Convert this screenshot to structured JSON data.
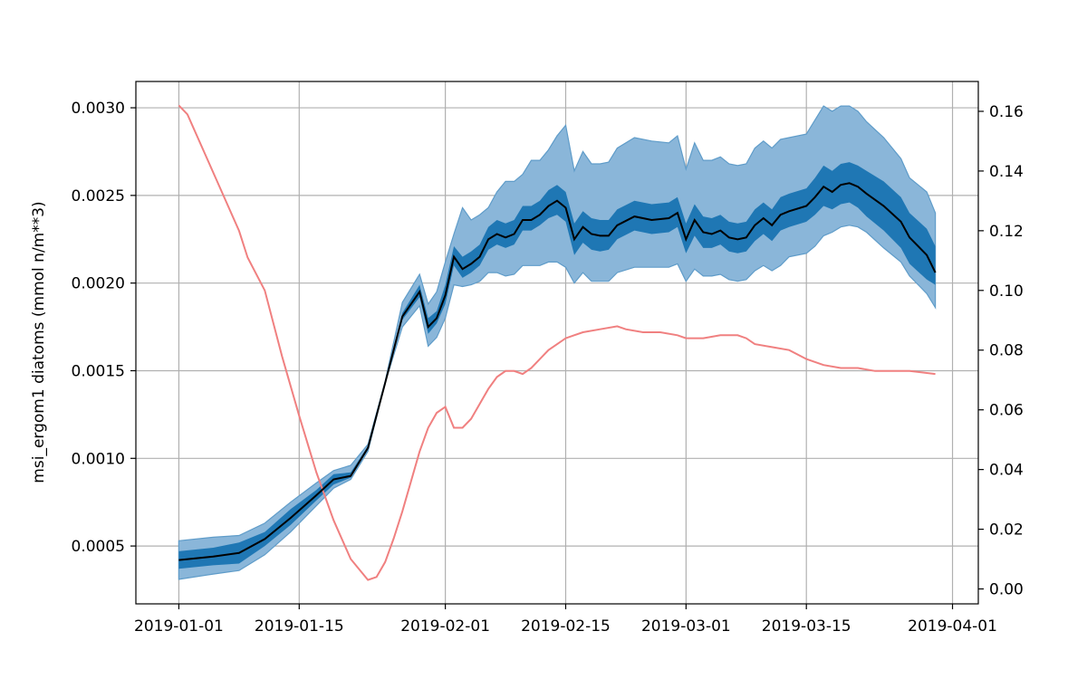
{
  "chart_data": {
    "type": "line",
    "title": "",
    "xlabel": "",
    "ylabel": "msi_ergom1 diatoms (mmol n/m**3)",
    "y2label": "",
    "grid": true,
    "x_ticks": [
      "2019-01-01",
      "2019-01-15",
      "2019-02-01",
      "2019-02-15",
      "2019-03-01",
      "2019-03-15",
      "2019-04-01"
    ],
    "y_ticks": [
      "0.0005",
      "0.0010",
      "0.0015",
      "0.0020",
      "0.0025",
      "0.0030"
    ],
    "y2_ticks": [
      "0.00",
      "0.02",
      "0.04",
      "0.06",
      "0.08",
      "0.10",
      "0.12",
      "0.14",
      "0.16"
    ],
    "xlim": [
      "2018-12-27",
      "2019-04-04"
    ],
    "ylim": [
      0.00017,
      0.00315
    ],
    "y2lim": [
      -0.005,
      0.17
    ],
    "colors": {
      "outer_band": "#8ab6d9",
      "outer_band_edge": "#5f9cc9",
      "inner_band": "#1f77b4",
      "median_line": "#000000",
      "secondary_line": "#f08080"
    },
    "series": [
      {
        "axis": "left",
        "x": [
          "2019-01-01",
          "2019-01-05",
          "2019-01-08",
          "2019-01-11",
          "2019-01-14",
          "2019-01-17",
          "2019-01-19",
          "2019-01-21",
          "2019-01-23",
          "2019-01-25",
          "2019-01-27",
          "2019-01-29",
          "2019-01-30",
          "2019-01-31",
          "2019-02-01",
          "2019-02-02",
          "2019-02-03",
          "2019-02-04",
          "2019-02-05",
          "2019-02-06",
          "2019-02-07",
          "2019-02-08",
          "2019-02-09",
          "2019-02-10",
          "2019-02-11",
          "2019-02-12",
          "2019-02-13",
          "2019-02-14",
          "2019-02-15",
          "2019-02-16",
          "2019-02-17",
          "2019-02-18",
          "2019-02-19",
          "2019-02-20",
          "2019-02-21",
          "2019-02-23",
          "2019-02-25",
          "2019-02-27",
          "2019-02-28",
          "2019-03-01",
          "2019-03-02",
          "2019-03-03",
          "2019-03-04",
          "2019-03-05",
          "2019-03-06",
          "2019-03-07",
          "2019-03-08",
          "2019-03-09",
          "2019-03-10",
          "2019-03-11",
          "2019-03-12",
          "2019-03-13",
          "2019-03-15",
          "2019-03-16",
          "2019-03-17",
          "2019-03-18",
          "2019-03-19",
          "2019-03-20",
          "2019-03-21",
          "2019-03-22",
          "2019-03-24",
          "2019-03-26",
          "2019-03-27",
          "2019-03-29",
          "2019-03-30"
        ],
        "values": [
          0.00042,
          0.00044,
          0.00046,
          0.00054,
          0.00066,
          0.00079,
          0.00088,
          0.0009,
          0.00106,
          0.00143,
          0.00181,
          0.00195,
          0.00175,
          0.0018,
          0.00193,
          0.00215,
          0.00208,
          0.00211,
          0.00215,
          0.00225,
          0.00228,
          0.00226,
          0.00228,
          0.00236,
          0.00236,
          0.00239,
          0.00244,
          0.00247,
          0.00243,
          0.00225,
          0.00232,
          0.00228,
          0.00227,
          0.00227,
          0.00233,
          0.00238,
          0.00236,
          0.00237,
          0.0024,
          0.00225,
          0.00236,
          0.00229,
          0.00228,
          0.0023,
          0.00226,
          0.00225,
          0.00226,
          0.00233,
          0.00237,
          0.00233,
          0.00239,
          0.00241,
          0.00244,
          0.00249,
          0.00255,
          0.00252,
          0.00256,
          0.00257,
          0.00255,
          0.00251,
          0.00244,
          0.00235,
          0.00226,
          0.00216,
          0.00206
        ],
        "inner_band": {
          "lower": [
            0.00037,
            0.00039,
            0.0004,
            0.0005,
            0.00062,
            0.00076,
            0.00085,
            0.00089,
            0.00105,
            0.00143,
            0.00179,
            0.00192,
            0.00171,
            0.00177,
            0.00188,
            0.0021,
            0.00203,
            0.00206,
            0.0021,
            0.00219,
            0.00222,
            0.0022,
            0.00222,
            0.0023,
            0.0023,
            0.00233,
            0.00237,
            0.00239,
            0.00235,
            0.00216,
            0.00223,
            0.00219,
            0.00218,
            0.00219,
            0.00225,
            0.0023,
            0.00228,
            0.00229,
            0.00232,
            0.00217,
            0.00227,
            0.0022,
            0.0022,
            0.00222,
            0.00218,
            0.00217,
            0.00218,
            0.00224,
            0.00228,
            0.00224,
            0.0023,
            0.00232,
            0.00235,
            0.00239,
            0.00244,
            0.00242,
            0.00245,
            0.00246,
            0.00243,
            0.00238,
            0.0023,
            0.0022,
            0.00211,
            0.00202,
            0.00199
          ],
          "upper": [
            0.00047,
            0.00049,
            0.00052,
            0.00058,
            0.00071,
            0.00082,
            0.00091,
            0.00092,
            0.00107,
            0.00144,
            0.00183,
            0.00199,
            0.0018,
            0.00184,
            0.00199,
            0.00221,
            0.00215,
            0.00218,
            0.00222,
            0.00232,
            0.00236,
            0.00234,
            0.00236,
            0.00244,
            0.00244,
            0.00247,
            0.00253,
            0.00256,
            0.00252,
            0.00234,
            0.00241,
            0.00237,
            0.00236,
            0.00236,
            0.00242,
            0.00247,
            0.00245,
            0.00246,
            0.00249,
            0.00234,
            0.00245,
            0.00238,
            0.00237,
            0.00239,
            0.00235,
            0.00234,
            0.00235,
            0.00242,
            0.00246,
            0.00242,
            0.00249,
            0.00251,
            0.00254,
            0.0026,
            0.00267,
            0.00264,
            0.00268,
            0.00269,
            0.00267,
            0.00264,
            0.00258,
            0.00249,
            0.0024,
            0.00231,
            0.00221
          ]
        },
        "outer_band": {
          "lower": [
            0.00031,
            0.00034,
            0.00036,
            0.00045,
            0.00058,
            0.00073,
            0.00083,
            0.00088,
            0.00104,
            0.00143,
            0.00175,
            0.00187,
            0.00164,
            0.00169,
            0.0018,
            0.00199,
            0.00198,
            0.00199,
            0.00201,
            0.00206,
            0.00206,
            0.00204,
            0.00205,
            0.0021,
            0.0021,
            0.0021,
            0.00212,
            0.00212,
            0.00209,
            0.002,
            0.00206,
            0.00201,
            0.00201,
            0.00201,
            0.00206,
            0.00209,
            0.00209,
            0.00209,
            0.00211,
            0.00201,
            0.00208,
            0.00204,
            0.00204,
            0.00205,
            0.00202,
            0.00201,
            0.00202,
            0.00207,
            0.0021,
            0.00207,
            0.0021,
            0.00215,
            0.00217,
            0.00221,
            0.00227,
            0.00229,
            0.00232,
            0.00233,
            0.00232,
            0.00229,
            0.0022,
            0.00212,
            0.00204,
            0.00194,
            0.00186
          ],
          "upper": [
            0.00053,
            0.00055,
            0.00056,
            0.00063,
            0.00075,
            0.00086,
            0.00093,
            0.00096,
            0.00108,
            0.00144,
            0.00189,
            0.00205,
            0.00188,
            0.00195,
            0.00212,
            0.00228,
            0.00243,
            0.00236,
            0.00239,
            0.00243,
            0.00252,
            0.00258,
            0.00258,
            0.00262,
            0.0027,
            0.0027,
            0.00276,
            0.00284,
            0.0029,
            0.00264,
            0.00275,
            0.00268,
            0.00268,
            0.00269,
            0.00277,
            0.00283,
            0.00281,
            0.0028,
            0.00284,
            0.00265,
            0.0028,
            0.0027,
            0.0027,
            0.00272,
            0.00268,
            0.00267,
            0.00268,
            0.00277,
            0.00281,
            0.00277,
            0.00282,
            0.00283,
            0.00285,
            0.00293,
            0.00301,
            0.00298,
            0.00301,
            0.00301,
            0.00298,
            0.00292,
            0.00283,
            0.00271,
            0.0026,
            0.00252,
            0.0024
          ]
        }
      },
      {
        "axis": "right",
        "x": [
          "2019-01-01",
          "2019-01-02",
          "2019-01-04",
          "2019-01-06",
          "2019-01-08",
          "2019-01-09",
          "2019-01-11",
          "2019-01-13",
          "2019-01-15",
          "2019-01-17",
          "2019-01-19",
          "2019-01-21",
          "2019-01-23",
          "2019-01-24",
          "2019-01-25",
          "2019-01-26",
          "2019-01-27",
          "2019-01-28",
          "2019-01-29",
          "2019-01-30",
          "2019-01-31",
          "2019-02-01",
          "2019-02-02",
          "2019-02-03",
          "2019-02-04",
          "2019-02-05",
          "2019-02-06",
          "2019-02-07",
          "2019-02-08",
          "2019-02-09",
          "2019-02-10",
          "2019-02-11",
          "2019-02-12",
          "2019-02-13",
          "2019-02-15",
          "2019-02-17",
          "2019-02-19",
          "2019-02-21",
          "2019-02-22",
          "2019-02-24",
          "2019-02-26",
          "2019-02-28",
          "2019-03-01",
          "2019-03-03",
          "2019-03-05",
          "2019-03-07",
          "2019-03-08",
          "2019-03-09",
          "2019-03-11",
          "2019-03-13",
          "2019-03-15",
          "2019-03-17",
          "2019-03-19",
          "2019-03-21",
          "2019-03-23",
          "2019-03-25",
          "2019-03-27",
          "2019-03-30"
        ],
        "values": [
          0.162,
          0.159,
          0.146,
          0.133,
          0.12,
          0.111,
          0.1,
          0.078,
          0.058,
          0.039,
          0.023,
          0.01,
          0.003,
          0.004,
          0.009,
          0.017,
          0.026,
          0.036,
          0.046,
          0.054,
          0.059,
          0.061,
          0.054,
          0.054,
          0.057,
          0.062,
          0.067,
          0.071,
          0.073,
          0.073,
          0.072,
          0.074,
          0.077,
          0.08,
          0.084,
          0.086,
          0.087,
          0.088,
          0.087,
          0.086,
          0.086,
          0.085,
          0.084,
          0.084,
          0.085,
          0.085,
          0.084,
          0.082,
          0.081,
          0.08,
          0.077,
          0.075,
          0.074,
          0.074,
          0.073,
          0.073,
          0.073,
          0.072
        ]
      }
    ]
  }
}
